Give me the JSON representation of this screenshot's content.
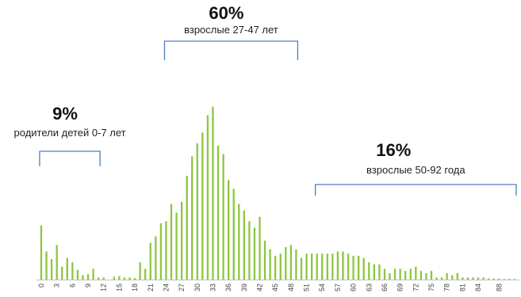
{
  "chart_data": {
    "type": "bar",
    "xlabel": "",
    "ylabel": "",
    "xlim": [
      0,
      91
    ],
    "ylim": [
      0,
      100
    ],
    "grid": false,
    "legend": "none",
    "tick_labels": [
      "0",
      "3",
      "6",
      "9",
      "12",
      "15",
      "18",
      "21",
      "24",
      "27",
      "30",
      "33",
      "36",
      "39",
      "42",
      "45",
      "48",
      "51",
      "54",
      "57",
      "60",
      "63",
      "66",
      "69",
      "72",
      "75",
      "78",
      "81",
      "84",
      "88"
    ],
    "x": [
      0,
      1,
      2,
      3,
      4,
      5,
      6,
      7,
      8,
      9,
      10,
      11,
      12,
      13,
      14,
      15,
      16,
      17,
      18,
      19,
      20,
      21,
      22,
      23,
      24,
      25,
      26,
      27,
      28,
      29,
      30,
      31,
      32,
      33,
      34,
      35,
      36,
      37,
      38,
      39,
      40,
      41,
      42,
      43,
      44,
      45,
      46,
      47,
      48,
      49,
      50,
      51,
      52,
      53,
      54,
      55,
      56,
      57,
      58,
      59,
      60,
      61,
      62,
      63,
      64,
      65,
      66,
      67,
      68,
      69,
      70,
      71,
      72,
      73,
      74,
      75,
      76,
      77,
      78,
      79,
      80,
      81,
      82,
      83,
      84,
      85,
      86,
      87,
      88,
      89,
      90,
      91
    ],
    "values": [
      25,
      13,
      9.5,
      16,
      6,
      10,
      8,
      4.5,
      2,
      2.5,
      5,
      1,
      1,
      0,
      1.3,
      1.6,
      1,
      1,
      0.7,
      8,
      5,
      17,
      20,
      26,
      27,
      35,
      31,
      36,
      48,
      57,
      63,
      68,
      76,
      80,
      62,
      58,
      46,
      42,
      35,
      32,
      27,
      24,
      29,
      18,
      14,
      11,
      12,
      15,
      16,
      14,
      10,
      12,
      12,
      12,
      12,
      12,
      12,
      13,
      13,
      12,
      11,
      11,
      10,
      8,
      7,
      7,
      5,
      3,
      5,
      5,
      4,
      5,
      6,
      4,
      3,
      4,
      1,
      1,
      3,
      2,
      3,
      1,
      1,
      1,
      1,
      1,
      0.5,
      0.5,
      0.5,
      0.3,
      0.3,
      0.3
    ],
    "annotations": [
      {
        "pct": "9%",
        "label": "родители детей 0-7 лет",
        "x_start": 0,
        "x_end": 11
      },
      {
        "pct": "60%",
        "label": "взрослые 27-47 лет",
        "x_start": 24,
        "x_end": 49
      },
      {
        "pct": "16%",
        "label": "взрослые 50-92 года",
        "x_start": 53,
        "x_end": 91
      }
    ]
  },
  "colors": {
    "bar": "#8cc63f",
    "bracket": "#4a7fc6",
    "axis": "#bfbfbf"
  }
}
